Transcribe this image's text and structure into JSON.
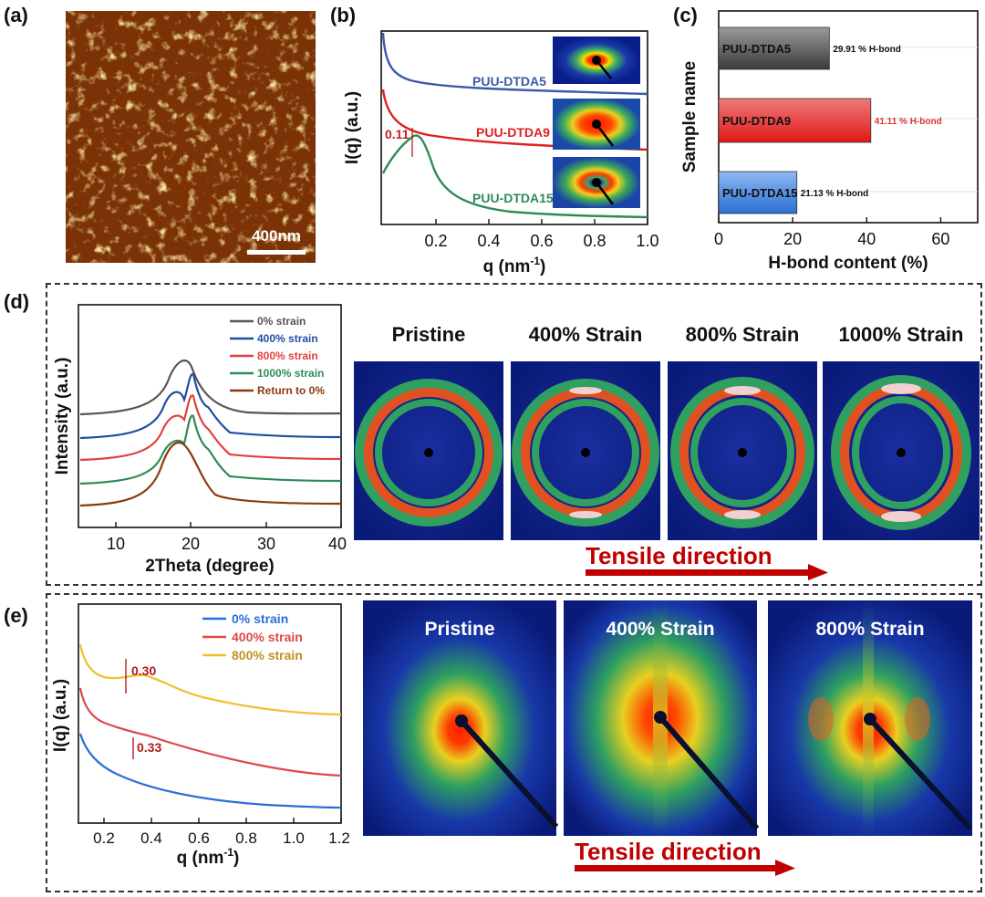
{
  "panels": {
    "a": {
      "label": "(a)",
      "scalebar": "400nm"
    },
    "b": {
      "label": "(b)",
      "xlabel": "q (nm",
      "xlabel_sup": "-1",
      "xlabel_end": ")",
      "ylabel": "I(q) (a.u.)",
      "xticks": [
        "0.2",
        "0.4",
        "0.6",
        "0.8",
        "1.0"
      ],
      "peak_label": "0.11",
      "series": [
        {
          "name": "PUU-DTDA5",
          "color": "#3c5aa8"
        },
        {
          "name": "PUU-DTDA9",
          "color": "#e02020"
        },
        {
          "name": "PUU-DTDA15",
          "color": "#2e8b57"
        }
      ]
    },
    "c": {
      "label": "(c)",
      "xlabel": "H-bond content (%)",
      "ylabel": "Sample name",
      "xticks": [
        "0",
        "20",
        "40",
        "60"
      ]
    },
    "d": {
      "label": "(d)",
      "xlabel": "2Theta (degree)",
      "ylabel": "Intensity (a.u.)",
      "xticks": [
        "10",
        "20",
        "30",
        "40"
      ],
      "legend": [
        {
          "name": "0% strain",
          "color": "#555555"
        },
        {
          "name": "400% strain",
          "color": "#1f4fa0"
        },
        {
          "name": "800% strain",
          "color": "#e04040"
        },
        {
          "name": "1000% strain",
          "color": "#2e8b57"
        },
        {
          "name": "Return to 0%",
          "color": "#8b3a0f"
        }
      ],
      "patterns": [
        "Pristine",
        "400% Strain",
        "800% Strain",
        "1000% Strain"
      ],
      "arrow": "Tensile direction"
    },
    "e": {
      "label": "(e)",
      "xlabel": "q (nm",
      "xlabel_sup": "-1",
      "xlabel_end": ")",
      "ylabel": "I(q) (a.u.)",
      "xticks": [
        "0.2",
        "0.4",
        "0.6",
        "0.8",
        "1.0",
        "1.2"
      ],
      "legend": [
        {
          "name": "0% strain",
          "color": "#2a6fd6"
        },
        {
          "name": "400% strain",
          "color": "#e04848"
        },
        {
          "name": "800% strain",
          "color": "#f0c030"
        }
      ],
      "marks": [
        "0.30",
        "0.33"
      ],
      "patterns": [
        "Pristine",
        "400% Strain",
        "800% Strain"
      ],
      "arrow": "Tensile direction"
    }
  },
  "chart_data": [
    {
      "type": "bar",
      "categories": [
        "PUU-DTDA5",
        "PUU-DTDA9",
        "PUU-DTDA15"
      ],
      "values": [
        29.91,
        41.11,
        21.13
      ],
      "value_labels": [
        "29.91 % H-bond",
        "41.11 % H-bond",
        "21.13 % H-bond"
      ],
      "colors": [
        "#555555",
        "#e03030",
        "#3a7fd5"
      ],
      "xlabel": "H-bond content (%)",
      "ylabel": "Sample name",
      "xlim": [
        0,
        70
      ],
      "orientation": "horizontal"
    }
  ]
}
